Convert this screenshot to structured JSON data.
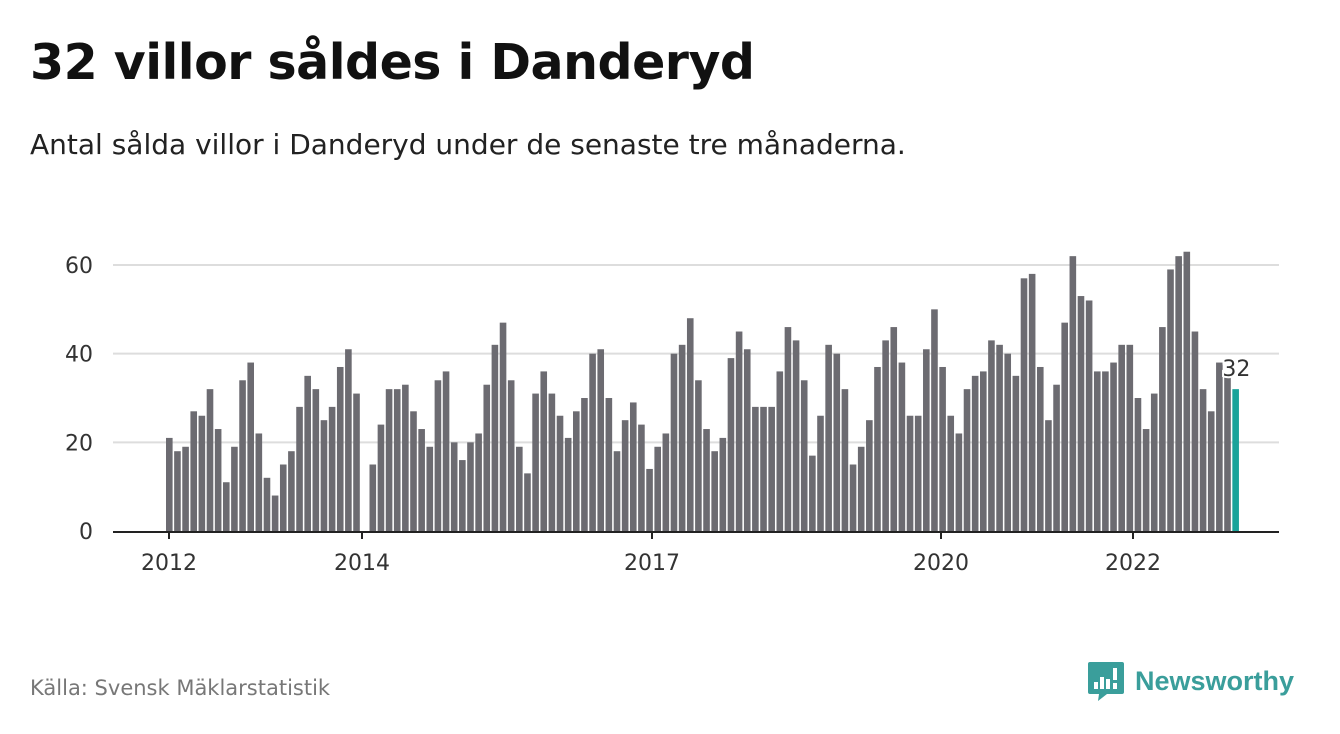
{
  "header": {
    "title": "32 villor såldes i Danderyd",
    "subtitle": "Antal sålda villor i Danderyd under de senaste tre månaderna."
  },
  "footer": {
    "source": "Källa: Svensk Mäklarstatistik",
    "brand": "Newsworthy"
  },
  "colors": {
    "bar": "#6c6b71",
    "highlight": "#1aa39a",
    "grid": "#dddddd",
    "brand": "#3a9e9b"
  },
  "icons": {
    "brand_logo": "bar-chart-speech-bubble-icon"
  },
  "chart_data": {
    "type": "bar",
    "title": "32 villor såldes i Danderyd",
    "subtitle": "Antal sålda villor i Danderyd under de senaste tre månaderna.",
    "xlabel": "",
    "ylabel": "",
    "ylim": [
      0,
      65
    ],
    "yticks": [
      0,
      20,
      40,
      60
    ],
    "xticks": [
      "2012",
      "2014",
      "2017",
      "2020",
      "2022"
    ],
    "grid": true,
    "highlight_label": "32",
    "values": [
      21,
      18,
      19,
      27,
      26,
      32,
      23,
      11,
      19,
      34,
      38,
      22,
      12,
      8,
      15,
      18,
      28,
      35,
      32,
      25,
      28,
      37,
      41,
      31,
      null,
      15,
      24,
      32,
      32,
      33,
      27,
      23,
      19,
      34,
      36,
      20,
      16,
      20,
      22,
      33,
      42,
      47,
      34,
      19,
      13,
      31,
      36,
      31,
      26,
      21,
      27,
      30,
      40,
      41,
      30,
      18,
      25,
      29,
      24,
      14,
      19,
      22,
      40,
      42,
      48,
      34,
      23,
      18,
      21,
      39,
      45,
      41,
      28,
      28,
      28,
      36,
      46,
      43,
      34,
      17,
      26,
      42,
      40,
      32,
      15,
      19,
      25,
      37,
      43,
      46,
      38,
      26,
      26,
      41,
      50,
      37,
      26,
      22,
      32,
      35,
      36,
      43,
      42,
      40,
      35,
      57,
      58,
      37,
      25,
      33,
      47,
      62,
      53,
      52,
      36,
      36,
      38,
      42,
      42,
      30,
      23,
      31,
      46,
      59,
      62,
      63,
      45,
      32,
      27,
      38,
      35,
      32
    ]
  }
}
